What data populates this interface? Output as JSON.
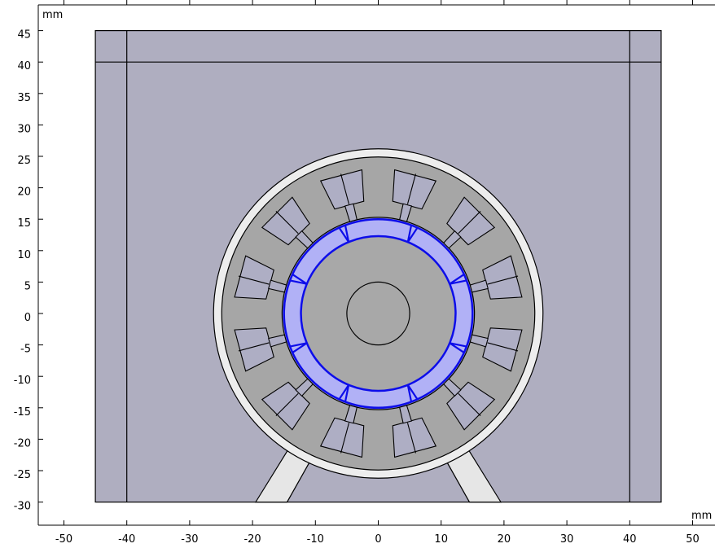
{
  "units": {
    "y_unit": "mm",
    "x_unit": "mm"
  },
  "axes": {
    "x_ticks": [
      -50,
      -40,
      -30,
      -20,
      -10,
      0,
      10,
      20,
      30,
      40,
      50
    ],
    "y_ticks": [
      45,
      40,
      35,
      30,
      25,
      20,
      15,
      10,
      5,
      0,
      -5,
      -10,
      -15,
      -20,
      -25,
      -30
    ],
    "x_range_mm": [
      -53.5,
      53
    ],
    "y_range_mm": [
      -34.5,
      48
    ]
  },
  "colors": {
    "domain_fill": "#afaec0",
    "outer_ring": "#ededed",
    "stator_fill": "#a6a6a6",
    "slot_fill": "#aeaec4",
    "rotor_fill": "#a8a8a8",
    "selection_blue": "#0d0dea",
    "selection_fill": "#b1b1f6",
    "support_fill": "#e6e6e6",
    "stroke": "#000000"
  }
}
